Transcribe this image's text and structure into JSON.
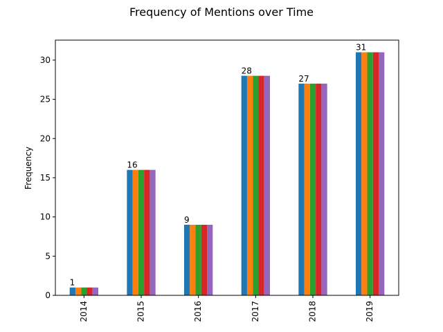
{
  "chart_data": {
    "type": "bar",
    "title": "Frequency of Mentions over Time",
    "xlabel": "",
    "ylabel": "Frequency",
    "categories": [
      "2014",
      "2015",
      "2016",
      "2017",
      "2018",
      "2019"
    ],
    "series": [
      {
        "color": "#1f77b4",
        "values": [
          1,
          16,
          9,
          28,
          27,
          31
        ]
      },
      {
        "color": "#ff7f0e",
        "values": [
          1,
          16,
          9,
          28,
          27,
          31
        ]
      },
      {
        "color": "#2ca02c",
        "values": [
          1,
          16,
          9,
          28,
          27,
          31
        ]
      },
      {
        "color": "#d62728",
        "values": [
          1,
          16,
          9,
          28,
          27,
          31
        ]
      },
      {
        "color": "#9467bd",
        "values": [
          1,
          16,
          9,
          28,
          27,
          31
        ]
      }
    ],
    "data_labels": [
      "1",
      "16",
      "9",
      "28",
      "27",
      "31"
    ],
    "ylim": [
      0,
      32.55
    ],
    "yticks": [
      0,
      5,
      10,
      15,
      20,
      25,
      30
    ],
    "grid": false,
    "legend": "none"
  }
}
